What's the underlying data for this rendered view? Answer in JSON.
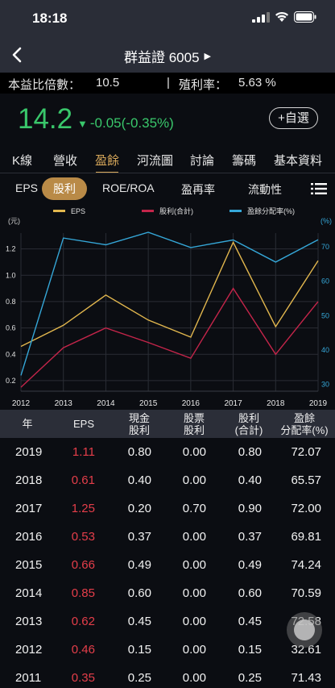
{
  "status_bar": {
    "time": "18:18"
  },
  "nav": {
    "title": "群益證 6005",
    "caret": "▶"
  },
  "info": {
    "pe_label": "本益比倍數：",
    "pe_value": "10.5",
    "sep": "|",
    "yield_label": "殖利率：",
    "yield_value": "5.63 %"
  },
  "quote": {
    "price": "14.2",
    "change": "-0.05(-0.35%)",
    "arrow": "▼",
    "add_label": "+自選"
  },
  "main_tabs": [
    "K線",
    "營收",
    "盈餘",
    "河流圖",
    "討論",
    "籌碼",
    "基本資料"
  ],
  "sub_tabs": [
    "EPS",
    "股利",
    "ROE/ROA",
    "盈再率",
    "流動性"
  ],
  "colors": {
    "eps": "#e2b74e",
    "dividend": "#c4254a",
    "payout": "#35a7d8",
    "accent": "#d9a95b",
    "green": "#39c76b",
    "red": "#e53e4a"
  },
  "chart_data": {
    "type": "line",
    "legend": [
      "EPS",
      "股利(合計)",
      "盈餘分配率(%)"
    ],
    "left_unit": "(元)",
    "right_unit": "(%)",
    "x": [
      "2012",
      "2013",
      "2014",
      "2015",
      "2016",
      "2017",
      "2018",
      "2019"
    ],
    "left_ticks": [
      "0.2",
      "0.4",
      "0.6",
      "0.8",
      "1.0",
      "1.2"
    ],
    "right_ticks": [
      "30",
      "40",
      "50",
      "60",
      "70"
    ],
    "ylim_left": [
      0.12,
      1.32
    ],
    "ylim_right": [
      28,
      74
    ],
    "series": [
      {
        "name": "EPS",
        "axis": "left",
        "values": [
          0.46,
          0.62,
          0.85,
          0.66,
          0.53,
          1.25,
          0.61,
          1.11
        ]
      },
      {
        "name": "股利(合計)",
        "axis": "left",
        "values": [
          0.15,
          0.45,
          0.6,
          0.49,
          0.37,
          0.9,
          0.4,
          0.8
        ]
      },
      {
        "name": "盈餘分配率(%)",
        "axis": "right",
        "values": [
          32.61,
          72.58,
          70.59,
          74.24,
          69.81,
          72.0,
          65.57,
          72.07
        ]
      }
    ]
  },
  "table": {
    "headers": [
      {
        "line1": "年",
        "line2": ""
      },
      {
        "line1": "EPS",
        "line2": ""
      },
      {
        "line1": "現金",
        "line2": "股利"
      },
      {
        "line1": "股票",
        "line2": "股利"
      },
      {
        "line1": "股利",
        "line2": "(合計)"
      },
      {
        "line1": "盈餘",
        "line2": "分配率(%)"
      }
    ],
    "rows": [
      [
        "2019",
        "1.11",
        "0.80",
        "0.00",
        "0.80",
        "72.07"
      ],
      [
        "2018",
        "0.61",
        "0.40",
        "0.00",
        "0.40",
        "65.57"
      ],
      [
        "2017",
        "1.25",
        "0.20",
        "0.70",
        "0.90",
        "72.00"
      ],
      [
        "2016",
        "0.53",
        "0.37",
        "0.00",
        "0.37",
        "69.81"
      ],
      [
        "2015",
        "0.66",
        "0.49",
        "0.00",
        "0.49",
        "74.24"
      ],
      [
        "2014",
        "0.85",
        "0.60",
        "0.00",
        "0.60",
        "70.59"
      ],
      [
        "2013",
        "0.62",
        "0.45",
        "0.00",
        "0.45",
        "72.58"
      ],
      [
        "2012",
        "0.46",
        "0.15",
        "0.00",
        "0.15",
        "32.61"
      ],
      [
        "2011",
        "0.35",
        "0.25",
        "0.00",
        "0.25",
        "71.43"
      ]
    ]
  }
}
